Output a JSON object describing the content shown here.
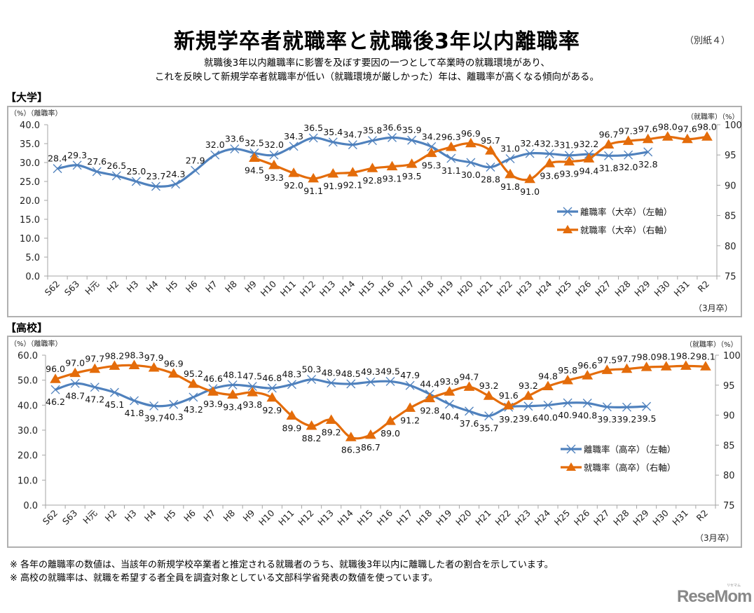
{
  "header": {
    "title": "新規学卒者就職率と就職後3年以内離職率",
    "annex": "（別紙４）",
    "subtitle_line1": "就職後3年以内離職率に影響を及ぼす要因の一つとして卒業時の就職環境があり、",
    "subtitle_line2": "これを反映して新規学卒者就職率が低い（就職環境が厳しかった）年は、離職率が高くなる傾向がある。"
  },
  "notes": [
    "※  各年の離職率の数値は、当該年の新規学校卒業者と推定される就職者のうち、就職後3年以内に離職した者の割合を示しています。",
    "※  高校の就職率は、就職を希望する者全員を調査対象としている文部科学省発表の数値を使っています。"
  ],
  "logo": {
    "text": "ReseMom",
    "small": "リセマム"
  },
  "colors": {
    "turnover": "#4f81bd",
    "employment": "#e46c0a",
    "axis": "#a6a6a6",
    "frame": "#b0b0b0"
  },
  "chart_data": [
    {
      "type": "line",
      "section_label": "【大学】",
      "title": "",
      "left_axis_label": "（%）（離職率）",
      "right_axis_label": "（就職率）（%）",
      "x_note": "（3月卒）",
      "categories": [
        "S62",
        "S63",
        "H元",
        "H2",
        "H3",
        "H4",
        "H5",
        "H6",
        "H7",
        "H8",
        "H9",
        "H10",
        "H11",
        "H12",
        "H13",
        "H14",
        "H15",
        "H16",
        "H17",
        "H18",
        "H19",
        "H20",
        "H21",
        "H22",
        "H23",
        "H24",
        "H25",
        "H26",
        "H27",
        "H28",
        "H29",
        "H30",
        "H31",
        "R2"
      ],
      "left_ylim": [
        0,
        40
      ],
      "left_ticks": [
        "0.0",
        "5.0",
        "10.0",
        "15.0",
        "20.0",
        "25.0",
        "30.0",
        "35.0",
        "40.0"
      ],
      "right_ylim": [
        75,
        100
      ],
      "right_ticks": [
        "75",
        "80",
        "85",
        "90",
        "95",
        "100"
      ],
      "legend_position": "center-right",
      "series": [
        {
          "name": "離職率（大卒）（左軸）",
          "axis": "left",
          "marker": "x",
          "values": [
            28.4,
            29.3,
            27.6,
            26.5,
            25.0,
            23.7,
            24.3,
            27.9,
            32.0,
            33.6,
            32.5,
            32.0,
            34.3,
            36.5,
            35.4,
            34.7,
            35.8,
            36.6,
            35.9,
            34.2,
            31.1,
            30.0,
            28.8,
            31.0,
            32.4,
            32.3,
            31.9,
            32.2,
            31.8,
            32.0,
            32.8,
            null,
            null,
            null
          ],
          "labels_below": [
            false,
            false,
            false,
            false,
            false,
            false,
            false,
            false,
            false,
            false,
            false,
            false,
            false,
            false,
            false,
            false,
            false,
            false,
            false,
            false,
            true,
            true,
            true,
            false,
            false,
            false,
            false,
            false,
            true,
            true,
            true,
            false,
            false,
            false
          ]
        },
        {
          "name": "就職率（大卒）（右軸）",
          "axis": "right",
          "marker": "triangle",
          "values": [
            null,
            null,
            null,
            null,
            null,
            null,
            null,
            null,
            null,
            null,
            94.5,
            93.3,
            92.0,
            91.1,
            91.9,
            92.1,
            92.8,
            93.1,
            93.5,
            95.3,
            96.3,
            96.9,
            95.7,
            91.8,
            91.0,
            93.6,
            93.9,
            94.4,
            96.7,
            97.3,
            97.6,
            98.0,
            97.6,
            98.0
          ],
          "labels_below": [
            false,
            false,
            false,
            false,
            false,
            false,
            false,
            false,
            false,
            false,
            true,
            true,
            true,
            true,
            true,
            true,
            true,
            true,
            true,
            true,
            false,
            false,
            false,
            true,
            true,
            true,
            true,
            true,
            false,
            false,
            false,
            false,
            false,
            false
          ]
        }
      ]
    },
    {
      "type": "line",
      "section_label": "【高校】",
      "title": "",
      "left_axis_label": "（%）（離職率）",
      "right_axis_label": "（就職率）（%）",
      "x_note": "（3月卒）",
      "categories": [
        "S62",
        "S63",
        "H元",
        "H2",
        "H3",
        "H4",
        "H5",
        "H6",
        "H7",
        "H8",
        "H9",
        "H10",
        "H11",
        "H12",
        "H13",
        "H14",
        "H15",
        "H16",
        "H17",
        "H18",
        "H19",
        "H20",
        "H21",
        "H22",
        "H23",
        "H24",
        "H25",
        "H26",
        "H27",
        "H28",
        "H29",
        "H30",
        "H31",
        "R2"
      ],
      "left_ylim": [
        0,
        60
      ],
      "left_ticks": [
        "0.0",
        "10.0",
        "20.0",
        "30.0",
        "40.0",
        "50.0",
        "60.0"
      ],
      "right_ylim": [
        75,
        100
      ],
      "right_ticks": [
        "75",
        "80",
        "85",
        "90",
        "95",
        "100"
      ],
      "legend_position": "center-right",
      "series": [
        {
          "name": "離職率（高卒）（左軸）",
          "axis": "left",
          "marker": "x",
          "values": [
            46.2,
            48.7,
            47.2,
            45.1,
            41.8,
            39.7,
            40.3,
            43.2,
            46.6,
            48.1,
            47.5,
            46.8,
            48.3,
            50.3,
            48.9,
            48.5,
            49.3,
            49.5,
            47.9,
            44.4,
            40.4,
            37.6,
            35.7,
            39.2,
            39.6,
            40.0,
            40.9,
            40.8,
            39.3,
            39.2,
            39.5,
            null,
            null,
            null
          ],
          "labels_below": [
            true,
            true,
            true,
            true,
            true,
            true,
            true,
            true,
            false,
            false,
            false,
            false,
            false,
            false,
            false,
            false,
            false,
            false,
            false,
            false,
            true,
            true,
            true,
            true,
            true,
            true,
            true,
            true,
            true,
            true,
            true,
            false,
            false,
            false
          ]
        },
        {
          "name": "就職率（高卒）（右軸）",
          "axis": "right",
          "marker": "triangle",
          "values": [
            96.0,
            97.0,
            97.7,
            98.2,
            98.3,
            97.9,
            96.9,
            95.2,
            93.9,
            93.4,
            93.8,
            92.9,
            89.9,
            88.2,
            89.2,
            86.3,
            86.7,
            89.0,
            91.2,
            92.8,
            93.9,
            94.7,
            93.2,
            91.6,
            93.2,
            94.8,
            95.8,
            96.6,
            97.5,
            97.7,
            98.0,
            98.1,
            98.2,
            98.1
          ],
          "labels_below": [
            false,
            false,
            false,
            false,
            false,
            false,
            false,
            false,
            true,
            true,
            true,
            true,
            true,
            true,
            true,
            true,
            true,
            true,
            true,
            true,
            false,
            false,
            false,
            false,
            false,
            false,
            false,
            false,
            false,
            false,
            false,
            false,
            false,
            false
          ]
        }
      ]
    }
  ]
}
